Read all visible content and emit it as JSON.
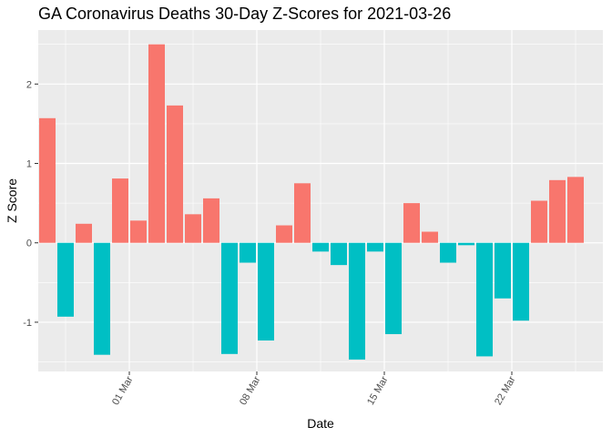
{
  "chart_data": {
    "type": "bar",
    "title": "GA Coronavirus Deaths 30-Day Z-Scores for 2021-03-26",
    "xlabel": "Date",
    "ylabel": "Z Score",
    "x_tick_labels": [
      "01 Mar",
      "08 Mar",
      "15 Mar",
      "22 Mar"
    ],
    "x_tick_positions": [
      4.5,
      11.5,
      18.5,
      25.5
    ],
    "y_ticks": [
      -1,
      0,
      1,
      2
    ],
    "ylim": [
      -1.62,
      2.68
    ],
    "xlim": [
      -0.5,
      30.5
    ],
    "grid": true,
    "legend": "none",
    "colors": {
      "positive": "#f8766d",
      "negative": "#00bfc4",
      "panel": "#ebebeb",
      "grid": "#ffffff"
    },
    "dates": [
      "2021-02-25",
      "2021-02-26",
      "2021-02-27",
      "2021-02-28",
      "2021-03-01",
      "2021-03-02",
      "2021-03-03",
      "2021-03-04",
      "2021-03-05",
      "2021-03-06",
      "2021-03-07",
      "2021-03-08",
      "2021-03-09",
      "2021-03-10",
      "2021-03-11",
      "2021-03-12",
      "2021-03-13",
      "2021-03-14",
      "2021-03-15",
      "2021-03-16",
      "2021-03-17",
      "2021-03-18",
      "2021-03-19",
      "2021-03-20",
      "2021-03-21",
      "2021-03-22",
      "2021-03-23",
      "2021-03-24",
      "2021-03-25",
      "2021-03-26"
    ],
    "values": [
      1.57,
      -0.93,
      0.24,
      -1.41,
      0.81,
      0.28,
      2.5,
      1.73,
      0.36,
      0.56,
      -1.4,
      -0.25,
      -1.23,
      0.22,
      0.75,
      -0.11,
      -0.28,
      -1.47,
      -0.11,
      -1.15,
      0.5,
      0.14,
      -0.25,
      -0.03,
      -1.43,
      -0.7,
      -0.98,
      0.53,
      0.79,
      0.83
    ]
  }
}
